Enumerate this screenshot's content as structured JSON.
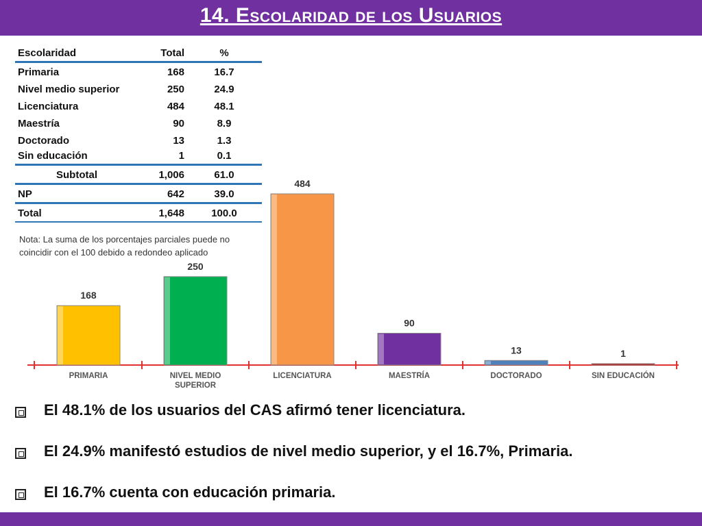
{
  "header": {
    "title": "14. Escolaridad de los Usuarios"
  },
  "table": {
    "columns": [
      "Escolaridad",
      "Total",
      "%"
    ],
    "rows": [
      [
        "Primaria",
        "168",
        "16.7"
      ],
      [
        "Nivel medio superior",
        "250",
        "24.9"
      ],
      [
        "Licenciatura",
        "484",
        "48.1"
      ],
      [
        "Maestría",
        "90",
        "8.9"
      ],
      [
        "Doctorado",
        "13",
        "1.3"
      ],
      [
        "Sin educación",
        "1",
        "0.1"
      ]
    ],
    "subtotal": [
      "Subtotal",
      "1,006",
      "61.0"
    ],
    "np": [
      "NP",
      "642",
      "39.0"
    ],
    "total": [
      "Total",
      "1,648",
      "100.0"
    ]
  },
  "note": "Nota: La suma de los porcentajes parciales puede no coincidir con el 100 debido a redondeo aplicado",
  "chart_data": {
    "type": "bar",
    "categories": [
      "PRIMARIA",
      "NIVEL MEDIO SUPERIOR",
      "LICENCIATURA",
      "MAESTRÍA",
      "DOCTORADO",
      "SIN EDUCACIÓN"
    ],
    "values": [
      168,
      250,
      484,
      90,
      13,
      1
    ],
    "data_labels": [
      "168",
      "250",
      "484",
      "90",
      "13",
      "1"
    ],
    "colors": [
      "#ffc000",
      "#00b050",
      "#f79646",
      "#7030a0",
      "#4f81bd",
      "#c00000"
    ],
    "axis_color": "#e03030",
    "title": "",
    "xlabel": "",
    "ylabel": "",
    "ylim": [
      0,
      484
    ],
    "grid": false,
    "legend": "none"
  },
  "bullets": [
    "El 48.1% de los usuarios del CAS afirmó tener licenciatura.",
    "El 24.9% manifestó estudios de nivel medio superior, y el 16.7%, Primaria.",
    "El 16.7% cuenta con educación primaria."
  ]
}
